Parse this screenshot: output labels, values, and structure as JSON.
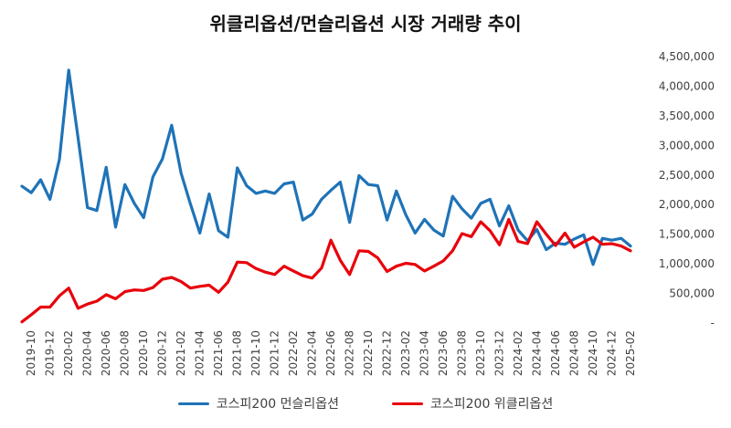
{
  "chart_data": {
    "type": "line",
    "title": "위클리옵션/먼슬리옵션 시장 거래량 추이",
    "xlabel": "",
    "ylabel": "",
    "ylim": [
      0,
      4500000
    ],
    "y_ticks": [
      "-",
      "500,000",
      "1,000,000",
      "1,500,000",
      "2,000,000",
      "2,500,000",
      "3,000,000",
      "3,500,000",
      "4,000,000",
      "4,500,000"
    ],
    "y_axis_position": "right",
    "grid": false,
    "legend_position": "bottom",
    "x": [
      "2019-09",
      "2019-10",
      "2019-11",
      "2019-12",
      "2020-01",
      "2020-02",
      "2020-03",
      "2020-04",
      "2020-05",
      "2020-06",
      "2020-07",
      "2020-08",
      "2020-09",
      "2020-10",
      "2020-11",
      "2020-12",
      "2021-01",
      "2021-02",
      "2021-03",
      "2021-04",
      "2021-05",
      "2021-06",
      "2021-07",
      "2021-08",
      "2021-09",
      "2021-10",
      "2021-11",
      "2021-12",
      "2022-01",
      "2022-02",
      "2022-03",
      "2022-04",
      "2022-05",
      "2022-06",
      "2022-07",
      "2022-08",
      "2022-09",
      "2022-10",
      "2022-11",
      "2022-12",
      "2023-01",
      "2023-02",
      "2023-03",
      "2023-04",
      "2023-05",
      "2023-06",
      "2023-07",
      "2023-08",
      "2023-09",
      "2023-10",
      "2023-11",
      "2023-12",
      "2024-01",
      "2024-02",
      "2024-03",
      "2024-04",
      "2024-05",
      "2024-06",
      "2024-07",
      "2024-08",
      "2024-09",
      "2024-10",
      "2024-11",
      "2024-12",
      "2025-01",
      "2025-02"
    ],
    "x_tick_labels": [
      "2019-10",
      "2019-12",
      "2020-02",
      "2020-04",
      "2020-06",
      "2020-08",
      "2020-10",
      "2020-12",
      "2021-02",
      "2021-04",
      "2021-06",
      "2021-08",
      "2021-10",
      "2021-12",
      "2022-02",
      "2022-04",
      "2022-06",
      "2022-08",
      "2022-10",
      "2022-12",
      "2023-02",
      "2023-04",
      "2023-06",
      "2023-08",
      "2023-10",
      "2023-12",
      "2024-02",
      "2024-04",
      "2024-06",
      "2024-08",
      "2024-10",
      "2024-12",
      "2025-02"
    ],
    "series": [
      {
        "name": "코스피200 먼슬리옵션",
        "color": "#1f73b7",
        "values": [
          2310000,
          2200000,
          2420000,
          2090000,
          2760000,
          4270000,
          3120000,
          1950000,
          1900000,
          2630000,
          1620000,
          2340000,
          2020000,
          1780000,
          2470000,
          2770000,
          3340000,
          2530000,
          2010000,
          1520000,
          2180000,
          1560000,
          1450000,
          2620000,
          2320000,
          2190000,
          2230000,
          2190000,
          2350000,
          2380000,
          1740000,
          1840000,
          2090000,
          2240000,
          2380000,
          1700000,
          2490000,
          2340000,
          2320000,
          1740000,
          2230000,
          1830000,
          1520000,
          1750000,
          1570000,
          1470000,
          2140000,
          1930000,
          1770000,
          2020000,
          2090000,
          1640000,
          1980000,
          1570000,
          1390000,
          1580000,
          1240000,
          1350000,
          1330000,
          1420000,
          1490000,
          990000,
          1430000,
          1400000,
          1430000,
          1300000
        ]
      },
      {
        "name": "코스피200 위클리옵션",
        "color": "#e8000b",
        "values": [
          20000,
          140000,
          270000,
          270000,
          460000,
          590000,
          250000,
          320000,
          370000,
          480000,
          410000,
          530000,
          560000,
          550000,
          600000,
          740000,
          770000,
          700000,
          590000,
          620000,
          640000,
          520000,
          690000,
          1030000,
          1020000,
          920000,
          860000,
          820000,
          960000,
          880000,
          800000,
          760000,
          930000,
          1400000,
          1060000,
          820000,
          1220000,
          1210000,
          1100000,
          870000,
          960000,
          1010000,
          990000,
          880000,
          960000,
          1050000,
          1220000,
          1510000,
          1460000,
          1710000,
          1560000,
          1320000,
          1750000,
          1380000,
          1340000,
          1710000,
          1500000,
          1310000,
          1520000,
          1280000,
          1370000,
          1450000,
          1330000,
          1340000,
          1300000,
          1220000
        ]
      }
    ]
  }
}
